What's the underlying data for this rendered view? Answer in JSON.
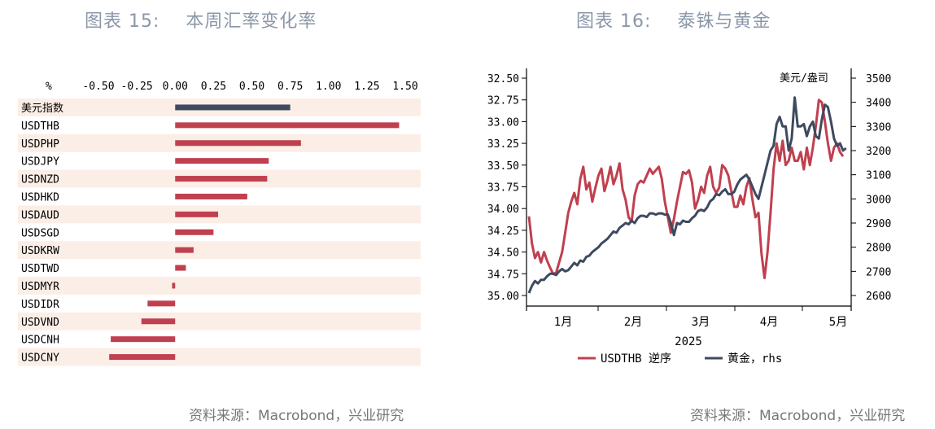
{
  "panels": {
    "left_title": "图表 15:    本周汇率变化率",
    "right_title": "图表 16:    泰铢与黄金",
    "left_source": "资料来源：Macrobond，兴业研究",
    "right_source": "资料来源：Macrobond，兴业研究"
  },
  "chart_data": [
    {
      "type": "bar",
      "orientation": "horizontal",
      "unit_label": "%",
      "xlim": [
        -0.5,
        1.5
      ],
      "xticks": [
        "-0.50",
        "-0.25",
        "0.00",
        "0.25",
        "0.50",
        "0.75",
        "1.00",
        "1.25",
        "1.50"
      ],
      "categories": [
        "美元指数",
        "USDTHB",
        "USDPHP",
        "USDJPY",
        "USDNZD",
        "USDHKD",
        "USDAUD",
        "USDSGD",
        "USDKRW",
        "USDTWD",
        "USDMYR",
        "USDIDR",
        "USDVND",
        "USDCNH",
        "USDCNY"
      ],
      "values": [
        0.75,
        1.46,
        0.82,
        0.61,
        0.6,
        0.47,
        0.28,
        0.25,
        0.12,
        0.07,
        -0.02,
        -0.18,
        -0.22,
        -0.42,
        -0.43
      ],
      "colors": {
        "highlight": "#3d4a60",
        "bar": "#c0404f",
        "band": "#fbeee6"
      }
    },
    {
      "type": "line",
      "x_year_label": "2025",
      "x_month_labels": [
        "1月",
        "2月",
        "3月",
        "4月",
        "5月"
      ],
      "y_left": {
        "ticks": [
          "32.50",
          "32.75",
          "33.00",
          "33.25",
          "33.50",
          "33.75",
          "34.00",
          "34.25",
          "34.50",
          "34.75",
          "35.00"
        ],
        "range": [
          32.5,
          35.0
        ],
        "inverted": true
      },
      "y_right": {
        "label": "美元/盎司",
        "ticks": [
          "3500",
          "3400",
          "3300",
          "3200",
          "3100",
          "3000",
          "2900",
          "2800",
          "2700",
          "2600"
        ],
        "range": [
          2600,
          3500
        ]
      },
      "series": [
        {
          "name": "USDTHB 逆序",
          "color": "#c0404f",
          "axis": "left",
          "values": [
            34.09,
            34.4,
            34.57,
            34.5,
            34.62,
            34.5,
            34.6,
            34.68,
            34.75,
            34.74,
            34.62,
            34.5,
            34.28,
            34.05,
            33.92,
            33.82,
            33.95,
            33.66,
            33.52,
            33.78,
            33.7,
            33.92,
            33.76,
            33.62,
            33.54,
            33.8,
            33.68,
            33.52,
            33.72,
            33.62,
            33.48,
            33.78,
            33.9,
            34.1,
            34.15,
            33.85,
            33.72,
            33.68,
            33.7,
            33.62,
            33.54,
            33.6,
            33.56,
            33.52,
            33.66,
            33.92,
            34.1,
            34.28,
            34.12,
            33.92,
            33.75,
            33.58,
            33.6,
            33.56,
            33.7,
            34.0,
            33.9,
            33.75,
            33.82,
            33.62,
            33.52,
            33.75,
            33.82,
            33.76,
            33.5,
            33.54,
            33.62,
            33.8,
            33.98,
            33.98,
            33.85,
            33.95,
            33.75,
            33.65,
            33.9,
            34.1,
            34.05,
            34.52,
            34.8,
            34.5,
            34.05,
            33.55,
            33.25,
            33.45,
            33.22,
            33.5,
            33.45,
            33.3,
            33.45,
            33.45,
            33.35,
            33.55,
            33.3,
            33.5,
            33.3,
            33.05,
            32.75,
            32.78,
            33.0,
            33.25,
            33.45,
            33.3,
            33.25,
            33.35,
            33.4
          ]
        },
        {
          "name": "黄金，rhs",
          "color": "#3d4a60",
          "axis": "right",
          "values": [
            2610,
            2640,
            2660,
            2650,
            2665,
            2665,
            2680,
            2690,
            2690,
            2685,
            2700,
            2710,
            2700,
            2705,
            2720,
            2735,
            2725,
            2745,
            2740,
            2760,
            2765,
            2780,
            2790,
            2800,
            2815,
            2825,
            2835,
            2850,
            2865,
            2860,
            2880,
            2890,
            2900,
            2895,
            2910,
            2900,
            2920,
            2930,
            2930,
            2925,
            2940,
            2940,
            2935,
            2940,
            2940,
            2935,
            2935,
            2900,
            2850,
            2900,
            2895,
            2910,
            2905,
            2905,
            2920,
            2930,
            2950,
            2955,
            2950,
            2965,
            2990,
            3000,
            3020,
            3015,
            3030,
            3040,
            3020,
            3020,
            3030,
            3060,
            3080,
            3090,
            3100,
            3080,
            3050,
            3020,
            3000,
            3050,
            3100,
            3150,
            3200,
            3220,
            3310,
            3340,
            3300,
            3300,
            3200,
            3250,
            3420,
            3300,
            3300,
            3310,
            3260,
            3300,
            3320,
            3260,
            3250,
            3330,
            3390,
            3380,
            3320,
            3250,
            3220,
            3230,
            3200,
            3210
          ]
        }
      ],
      "colors": {
        "axis": "#000000"
      }
    }
  ]
}
